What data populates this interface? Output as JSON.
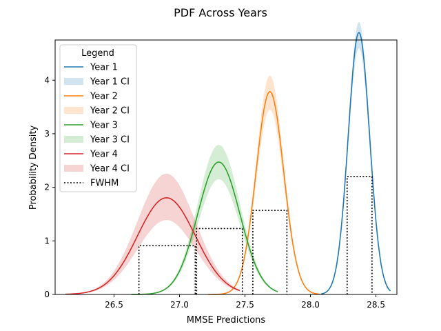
{
  "chart_data": {
    "type": "line",
    "title": "PDF Across Years",
    "xlabel": "MMSE Predictions",
    "ylabel": "Probability Density",
    "xlim": [
      26.05,
      28.66
    ],
    "ylim": [
      0,
      4.75
    ],
    "xticks": [
      "26.5",
      "27.0",
      "27.5",
      "28.0",
      "28.5"
    ],
    "yticks": [
      "0",
      "1",
      "2",
      "3",
      "4"
    ],
    "legend": {
      "title": "Legend",
      "location": "upper-left",
      "entries": [
        "Year 1",
        "Year 1 CI",
        "Year 2",
        "Year 2 CI",
        "Year 3",
        "Year 3 CI",
        "Year 4",
        "Year 4 CI",
        "FWHM"
      ]
    },
    "series": [
      {
        "name": "Year 1",
        "ci_name": "Year 1 CI",
        "color": "#1f77b4",
        "mean": 28.37,
        "sd": 0.0816,
        "x_range": [
          28.08,
          28.61
        ],
        "ci_lower_factor": 0.94,
        "ci_upper_factor": 1.04,
        "fwhm": {
          "x0": 28.28,
          "x1": 28.47,
          "height": 2.2
        }
      },
      {
        "name": "Year 2",
        "ci_name": "Year 2 CI",
        "color": "#ff7f0e",
        "mean": 27.69,
        "sd": 0.1054,
        "x_range": [
          27.22,
          28.07
        ],
        "ci_lower_factor": 0.91,
        "ci_upper_factor": 1.08,
        "fwhm": {
          "x0": 27.56,
          "x1": 27.82,
          "height": 1.57
        }
      },
      {
        "name": "Year 3",
        "ci_name": "Year 3 CI",
        "color": "#2ca02c",
        "mean": 27.3,
        "sd": 0.1614,
        "x_range": [
          26.63,
          27.75
        ],
        "ci_lower_factor": 0.87,
        "ci_upper_factor": 1.13,
        "fwhm": {
          "x0": 27.13,
          "x1": 27.48,
          "height": 1.23
        }
      },
      {
        "name": "Year 4",
        "ci_name": "Year 4 CI",
        "color": "#d62728",
        "mean": 26.9,
        "sd": 0.2211,
        "x_range": [
          26.13,
          27.46
        ],
        "ci_lower_factor": 0.77,
        "ci_upper_factor": 1.25,
        "fwhm": {
          "x0": 26.69,
          "x1": 27.12,
          "height": 0.91
        }
      }
    ]
  }
}
